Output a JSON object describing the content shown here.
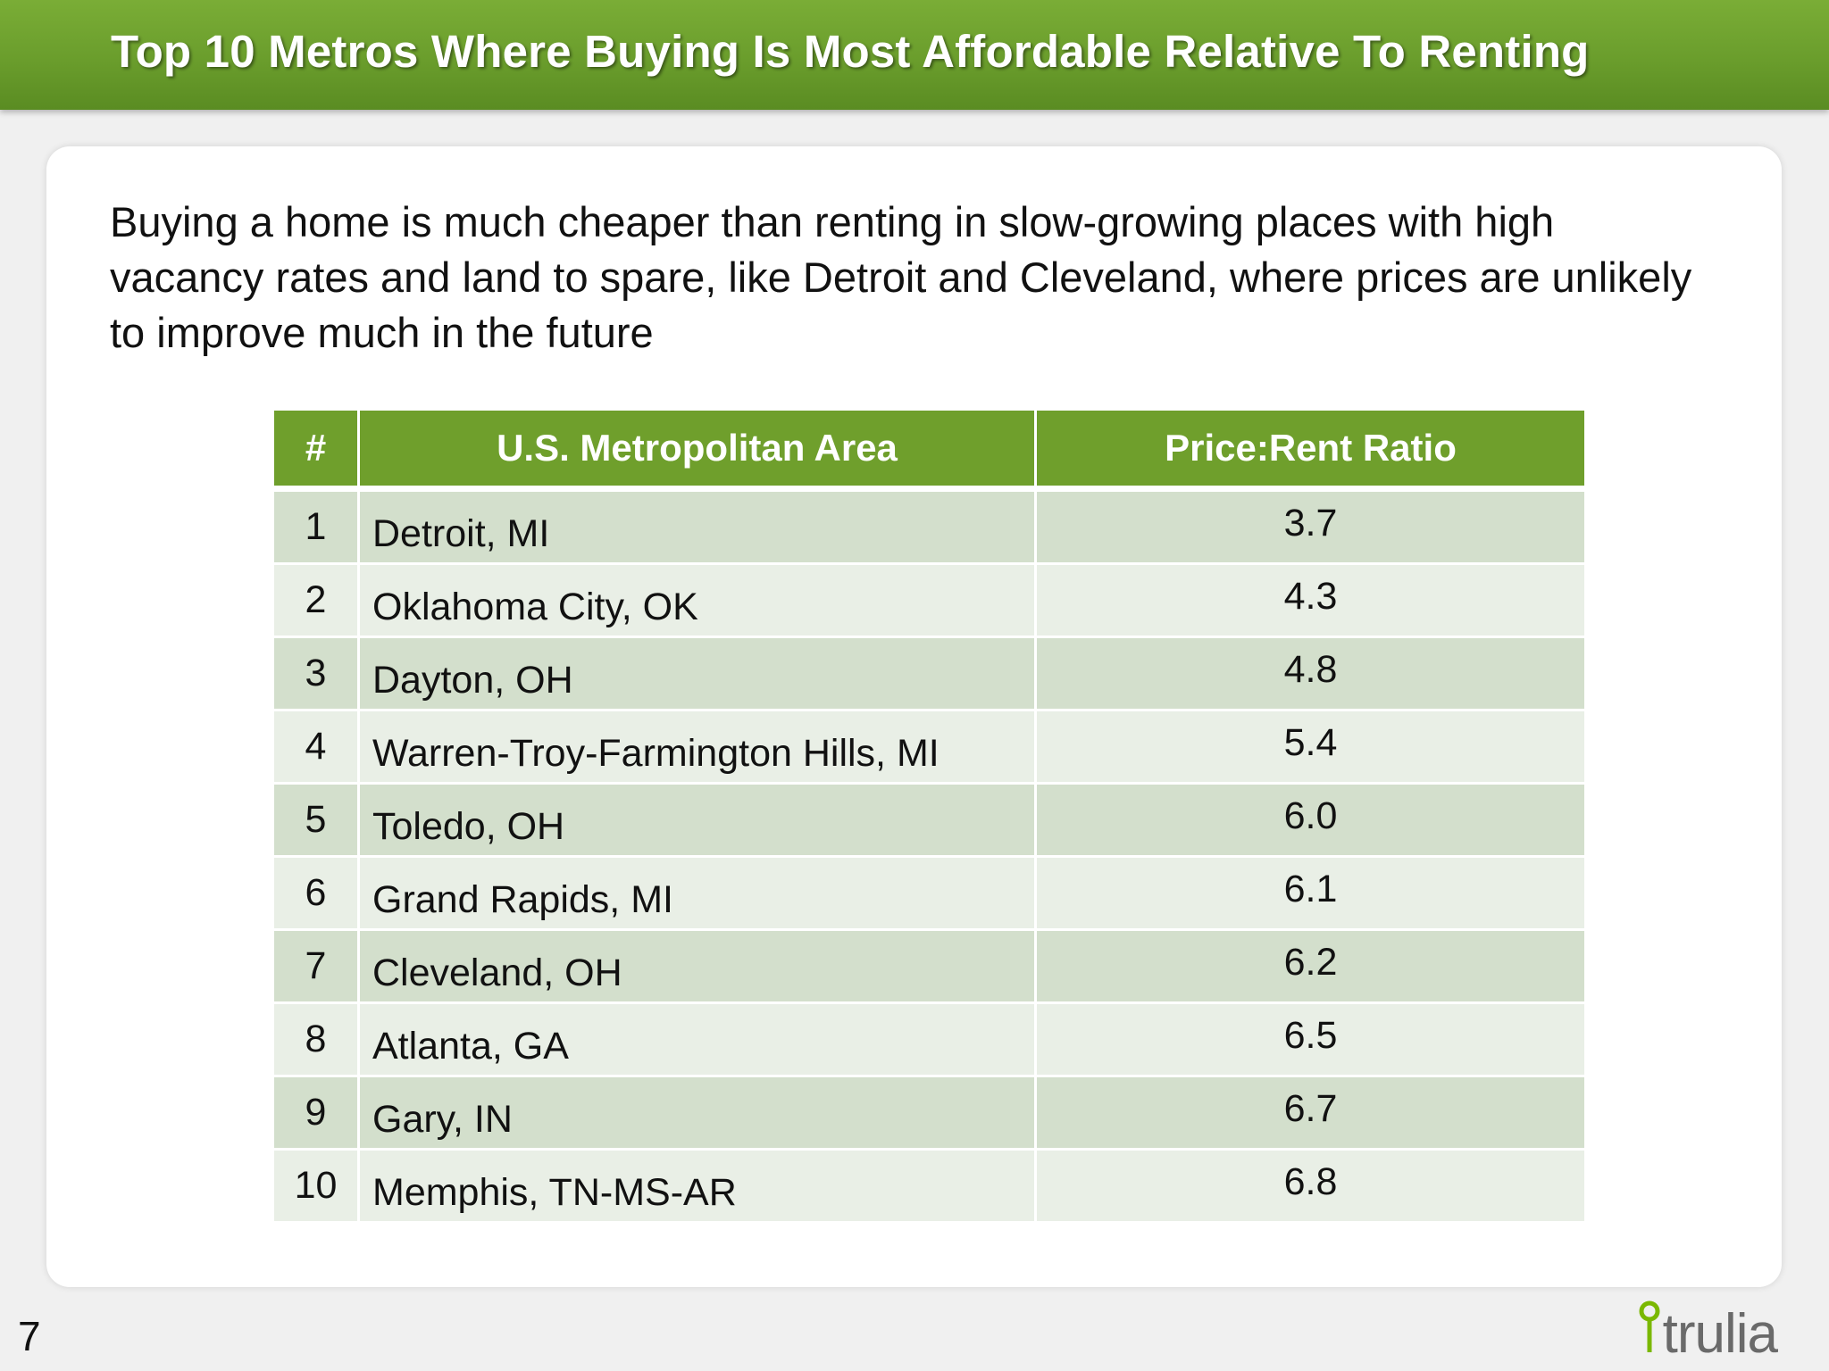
{
  "title": "Top 10 Metros Where Buying Is Most Affordable Relative To Renting",
  "intro": "Buying a home is much cheaper than renting in slow-growing places with high vacancy rates and land to spare, like Detroit and Cleveland, where prices are unlikely to improve much in the future",
  "table": {
    "headers": {
      "rank": "#",
      "metro": "U.S. Metropolitan Area",
      "ratio": "Price:Rent Ratio"
    },
    "rows": [
      {
        "rank": "1",
        "metro": "Detroit, MI",
        "ratio": "3.7"
      },
      {
        "rank": "2",
        "metro": "Oklahoma City, OK",
        "ratio": "4.3"
      },
      {
        "rank": "3",
        "metro": "Dayton, OH",
        "ratio": "4.8"
      },
      {
        "rank": "4",
        "metro": "Warren-Troy-Farmington Hills, MI",
        "ratio": "5.4"
      },
      {
        "rank": "5",
        "metro": "Toledo, OH",
        "ratio": "6.0"
      },
      {
        "rank": "6",
        "metro": "Grand Rapids, MI",
        "ratio": "6.1"
      },
      {
        "rank": "7",
        "metro": "Cleveland, OH",
        "ratio": "6.2"
      },
      {
        "rank": "8",
        "metro": "Atlanta, GA",
        "ratio": "6.5"
      },
      {
        "rank": "9",
        "metro": "Gary, IN",
        "ratio": "6.7"
      },
      {
        "rank": "10",
        "metro": "Memphis, TN-MS-AR",
        "ratio": "6.8"
      }
    ]
  },
  "page_number": "7",
  "logo": {
    "text": "trulia",
    "icon": "location-pin-icon",
    "accent_color": "#7ab800"
  },
  "colors": {
    "title_bar": "#6a9d2c",
    "header_row": "#6f9f2c",
    "row_dark": "#d3dfcc",
    "row_light": "#e9efe6"
  }
}
